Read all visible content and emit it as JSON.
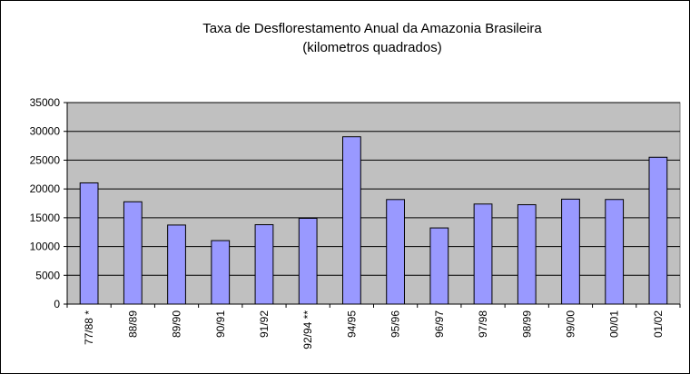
{
  "chart_data": {
    "type": "bar",
    "title": "Taxa de Desflorestamento Anual da Amazonia Brasileira",
    "subtitle": "(kilometros quadrados)",
    "categories": [
      "77/88 *",
      "88/89",
      "89/90",
      "90/91",
      "91/92",
      "92/94 **",
      "94/95",
      "95/96",
      "96/97",
      "97/98",
      "98/99",
      "99/00",
      "00/01",
      "01/02"
    ],
    "values": [
      21050,
      17770,
      13730,
      11030,
      13790,
      14900,
      29060,
      18160,
      13230,
      17380,
      17260,
      18230,
      18170,
      25500
    ],
    "color": "#9999ff",
    "ylim": [
      0,
      35000
    ],
    "yticks": [
      0,
      5000,
      10000,
      15000,
      20000,
      25000,
      30000,
      35000
    ],
    "grid": true
  }
}
